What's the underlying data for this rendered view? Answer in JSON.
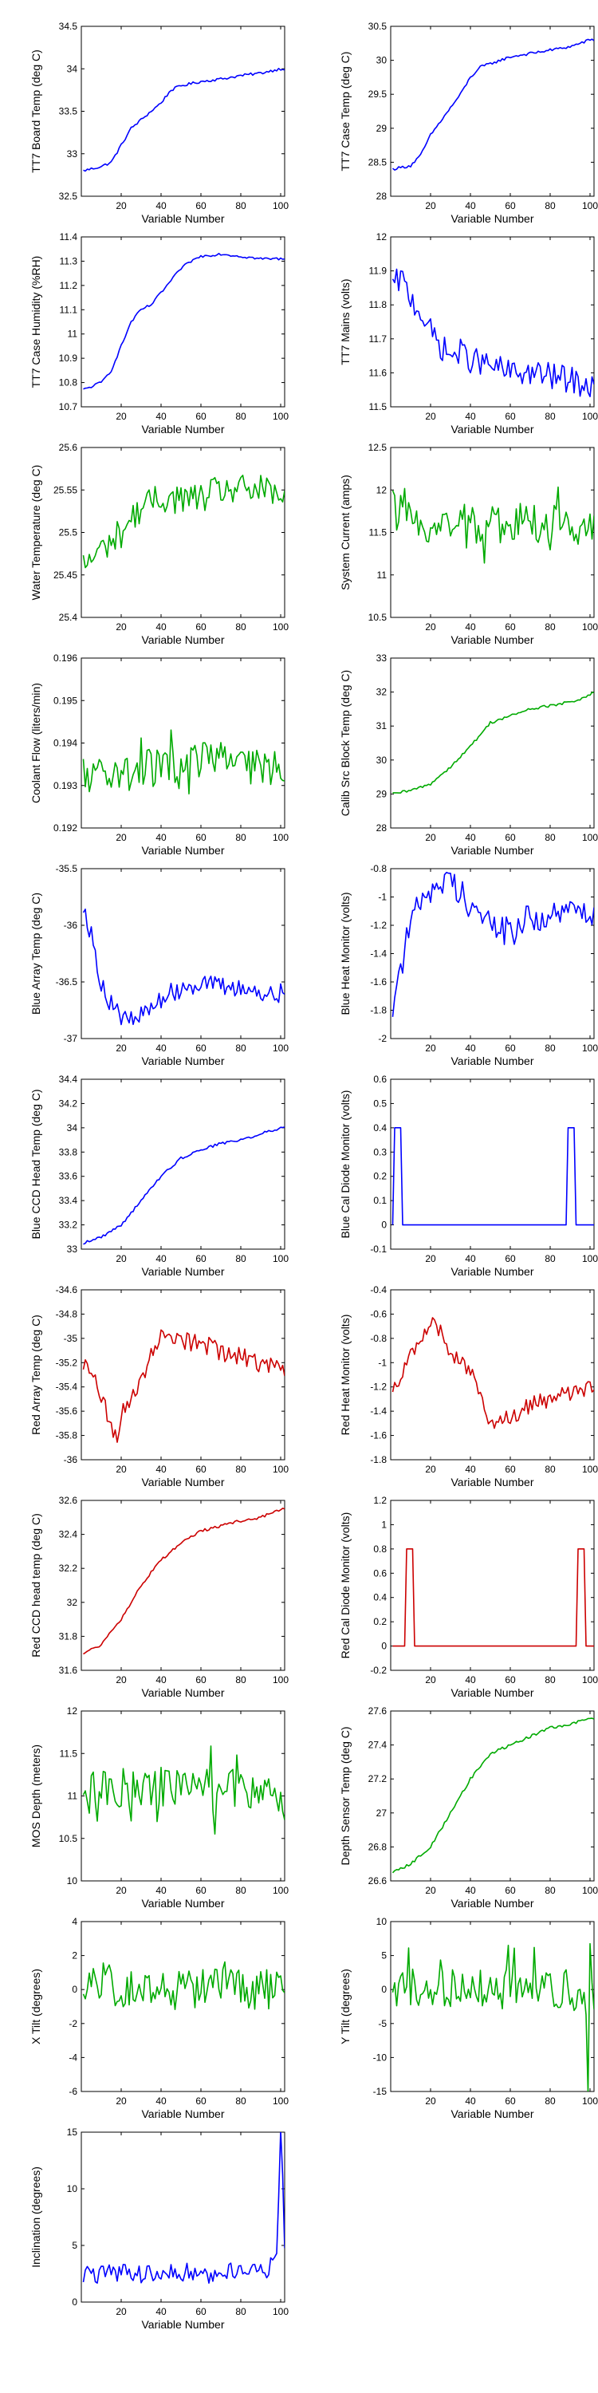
{
  "chart_data": [
    {
      "type": "line",
      "xlabel": "Variable Number",
      "ylabel": "TT7 Board Temp (deg C)",
      "xlim": [
        0,
        102
      ],
      "ylim": [
        32.5,
        34.5
      ],
      "xticks": [
        20,
        40,
        60,
        80,
        100
      ],
      "yticks": [
        32.5,
        33,
        33.5,
        34,
        34.5
      ],
      "color": "#0000ff",
      "shape": "rising_plateau",
      "x": [
        1,
        10,
        15,
        20,
        25,
        30,
        35,
        40,
        45,
        50,
        60,
        70,
        80,
        90,
        100,
        102
      ],
      "y": [
        32.8,
        32.85,
        32.9,
        33.1,
        33.3,
        33.4,
        33.5,
        33.6,
        33.75,
        33.8,
        33.85,
        33.88,
        33.92,
        33.95,
        34.0,
        34.0
      ]
    },
    {
      "type": "line",
      "xlabel": "Variable Number",
      "ylabel": "TT7 Case Temp (deg C)",
      "xlim": [
        0,
        102
      ],
      "ylim": [
        28,
        30.5
      ],
      "xticks": [
        20,
        40,
        60,
        80,
        100
      ],
      "yticks": [
        28,
        28.5,
        29,
        29.5,
        30,
        30.5
      ],
      "color": "#0000ff",
      "shape": "rising_plateau",
      "x": [
        1,
        10,
        15,
        20,
        25,
        30,
        35,
        40,
        45,
        50,
        60,
        70,
        80,
        90,
        100,
        102
      ],
      "y": [
        28.4,
        28.45,
        28.6,
        28.9,
        29.1,
        29.3,
        29.5,
        29.75,
        29.9,
        29.95,
        30.05,
        30.1,
        30.15,
        30.2,
        30.3,
        30.3
      ]
    },
    {
      "type": "line",
      "xlabel": "Variable Number",
      "ylabel": "TT7 Case Humidity (%RH)",
      "xlim": [
        0,
        102
      ],
      "ylim": [
        10.7,
        11.4
      ],
      "xticks": [
        20,
        40,
        60,
        80,
        100
      ],
      "yticks": [
        10.7,
        10.8,
        10.9,
        11,
        11.1,
        11.2,
        11.3,
        11.4
      ],
      "color": "#0000ff",
      "shape": "rising_plateau",
      "x": [
        1,
        10,
        15,
        20,
        25,
        30,
        35,
        40,
        45,
        50,
        55,
        60,
        70,
        80,
        90,
        100,
        102
      ],
      "y": [
        10.77,
        10.8,
        10.85,
        10.95,
        11.05,
        11.1,
        11.12,
        11.17,
        11.22,
        11.27,
        11.3,
        11.32,
        11.33,
        11.32,
        11.31,
        11.31,
        11.31
      ]
    },
    {
      "type": "line",
      "xlabel": "Variable Number",
      "ylabel": "TT7 Mains (volts)",
      "xlim": [
        0,
        102
      ],
      "ylim": [
        11.5,
        12
      ],
      "xticks": [
        20,
        40,
        60,
        80,
        100
      ],
      "yticks": [
        11.5,
        11.6,
        11.7,
        11.8,
        11.9,
        12
      ],
      "color": "#0000ff",
      "shape": "noisy_decay",
      "x": [
        1,
        5,
        10,
        15,
        20,
        25,
        30,
        35,
        40,
        50,
        60,
        70,
        80,
        90,
        100,
        102
      ],
      "y": [
        11.85,
        11.88,
        11.82,
        11.78,
        11.72,
        11.68,
        11.65,
        11.66,
        11.64,
        11.62,
        11.6,
        11.6,
        11.59,
        11.58,
        11.56,
        11.56
      ]
    },
    {
      "type": "line",
      "xlabel": "Variable Number",
      "ylabel": "Water Temperature (deg C)",
      "xlim": [
        0,
        102
      ],
      "ylim": [
        25.4,
        25.6
      ],
      "xticks": [
        20,
        40,
        60,
        80,
        100
      ],
      "yticks": [
        25.4,
        25.45,
        25.5,
        25.55,
        25.6
      ],
      "color": "#00aa00",
      "shape": "noisy_rise",
      "x": [
        1,
        10,
        20,
        30,
        40,
        50,
        60,
        70,
        80,
        90,
        100,
        102
      ],
      "y": [
        25.46,
        25.48,
        25.5,
        25.53,
        25.54,
        25.54,
        25.54,
        25.55,
        25.55,
        25.55,
        25.54,
        25.54
      ]
    },
    {
      "type": "line",
      "xlabel": "Variable Number",
      "ylabel": "System Current (amps)",
      "xlim": [
        0,
        102
      ],
      "ylim": [
        10.5,
        12.5
      ],
      "xticks": [
        20,
        40,
        60,
        80,
        100
      ],
      "yticks": [
        10.5,
        11,
        11.5,
        12,
        12.5
      ],
      "color": "#00aa00",
      "shape": "noisy_flat",
      "x": [
        1,
        5,
        10,
        20,
        30,
        40,
        50,
        60,
        70,
        80,
        90,
        100,
        102
      ],
      "y": [
        11.8,
        11.7,
        11.6,
        11.6,
        11.6,
        11.6,
        11.6,
        11.6,
        11.6,
        11.6,
        11.6,
        11.6,
        11.6
      ]
    },
    {
      "type": "line",
      "xlabel": "Variable Number",
      "ylabel": "Coolant Flow (liters/min)",
      "xlim": [
        0,
        102
      ],
      "ylim": [
        0.192,
        0.196
      ],
      "xticks": [
        20,
        40,
        60,
        80,
        100
      ],
      "yticks": [
        0.192,
        0.193,
        0.194,
        0.195,
        0.196
      ],
      "color": "#00aa00",
      "shape": "noisy_flat",
      "x": [
        1,
        10,
        20,
        30,
        40,
        50,
        60,
        65,
        70,
        80,
        90,
        100,
        102
      ],
      "y": [
        0.1932,
        0.1933,
        0.1933,
        0.1934,
        0.1934,
        0.1934,
        0.1935,
        0.1938,
        0.1936,
        0.1934,
        0.1934,
        0.1933,
        0.1933
      ]
    },
    {
      "type": "line",
      "xlabel": "Variable Number",
      "ylabel": "Calib Src Block Temp (deg C)",
      "xlim": [
        0,
        102
      ],
      "ylim": [
        28,
        33
      ],
      "xticks": [
        20,
        40,
        60,
        80,
        100
      ],
      "yticks": [
        28,
        29,
        30,
        31,
        32,
        33
      ],
      "color": "#00aa00",
      "shape": "rising_plateau",
      "x": [
        1,
        10,
        20,
        30,
        40,
        50,
        60,
        70,
        80,
        90,
        100,
        102
      ],
      "y": [
        29.0,
        29.1,
        29.3,
        29.8,
        30.4,
        31.1,
        31.3,
        31.5,
        31.6,
        31.7,
        31.9,
        32.0
      ]
    },
    {
      "type": "line",
      "xlabel": "Variable Number",
      "ylabel": "Blue Array Temp (deg C)",
      "xlim": [
        0,
        102
      ],
      "ylim": [
        -37,
        -35.5
      ],
      "xticks": [
        20,
        40,
        60,
        80,
        100
      ],
      "yticks": [
        -37,
        -36.5,
        -36,
        -35.5
      ],
      "color": "#0000ff",
      "shape": "noisy_dip",
      "x": [
        1,
        5,
        10,
        15,
        20,
        25,
        30,
        40,
        50,
        60,
        70,
        80,
        90,
        100,
        102
      ],
      "y": [
        -35.8,
        -36.1,
        -36.5,
        -36.7,
        -36.8,
        -36.85,
        -36.8,
        -36.65,
        -36.55,
        -36.5,
        -36.55,
        -36.55,
        -36.6,
        -36.6,
        -36.6
      ]
    },
    {
      "type": "line",
      "xlabel": "Variable Number",
      "ylabel": "Blue Heat Monitor (volts)",
      "xlim": [
        0,
        102
      ],
      "ylim": [
        -2,
        -0.8
      ],
      "xticks": [
        20,
        40,
        60,
        80,
        100
      ],
      "yticks": [
        -2,
        -1.8,
        -1.6,
        -1.4,
        -1.2,
        -1,
        -0.8
      ],
      "color": "#0000ff",
      "shape": "noisy_rise",
      "x": [
        1,
        5,
        10,
        15,
        20,
        25,
        30,
        35,
        40,
        50,
        60,
        70,
        80,
        90,
        100,
        102
      ],
      "y": [
        -1.75,
        -1.5,
        -1.2,
        -1.0,
        -0.95,
        -0.9,
        -0.9,
        -0.95,
        -1.05,
        -1.2,
        -1.25,
        -1.15,
        -1.15,
        -1.1,
        -1.1,
        -1.1
      ]
    },
    {
      "type": "line",
      "xlabel": "Variable Number",
      "ylabel": "Blue CCD Head Temp (deg C)",
      "xlim": [
        0,
        102
      ],
      "ylim": [
        33,
        34.4
      ],
      "xticks": [
        20,
        40,
        60,
        80,
        100
      ],
      "yticks": [
        33,
        33.2,
        33.4,
        33.6,
        33.8,
        34,
        34.2,
        34.4
      ],
      "color": "#0000ff",
      "shape": "rising_plateau",
      "x": [
        1,
        10,
        20,
        30,
        40,
        50,
        60,
        70,
        80,
        90,
        100,
        102
      ],
      "y": [
        33.05,
        33.1,
        33.2,
        33.4,
        33.6,
        33.75,
        33.82,
        33.87,
        33.9,
        33.95,
        34.0,
        34.0
      ]
    },
    {
      "type": "line",
      "xlabel": "Variable Number",
      "ylabel": "Blue Cal Diode Monitor (volts)",
      "xlim": [
        0,
        102
      ],
      "ylim": [
        -0.1,
        0.6
      ],
      "xticks": [
        20,
        40,
        60,
        80,
        100
      ],
      "yticks": [
        -0.1,
        0,
        0.1,
        0.2,
        0.3,
        0.4,
        0.5,
        0.6
      ],
      "color": "#0000ff",
      "shape": "step",
      "x": [
        1,
        2,
        5,
        6,
        88,
        89,
        92,
        93,
        102
      ],
      "y": [
        0,
        0.4,
        0.4,
        0,
        0,
        0.4,
        0.4,
        0,
        0
      ]
    },
    {
      "type": "line",
      "xlabel": "Variable Number",
      "ylabel": "Red Array Temp (deg C)",
      "xlim": [
        0,
        102
      ],
      "ylim": [
        -36,
        -34.6
      ],
      "xticks": [
        20,
        40,
        60,
        80,
        100
      ],
      "yticks": [
        -36,
        -35.8,
        -35.6,
        -35.4,
        -35.2,
        -35,
        -34.8,
        -34.6
      ],
      "color": "#cc0000",
      "shape": "noisy_dip",
      "x": [
        1,
        5,
        10,
        15,
        18,
        20,
        25,
        30,
        35,
        40,
        45,
        50,
        60,
        70,
        80,
        90,
        100,
        102
      ],
      "y": [
        -35.2,
        -35.3,
        -35.5,
        -35.7,
        -35.9,
        -35.6,
        -35.5,
        -35.3,
        -35.15,
        -35.0,
        -34.95,
        -35.0,
        -35.05,
        -35.1,
        -35.15,
        -35.2,
        -35.25,
        -35.25
      ]
    },
    {
      "type": "line",
      "xlabel": "Variable Number",
      "ylabel": "Red Heat Monitor (volts)",
      "xlim": [
        0,
        102
      ],
      "ylim": [
        -1.8,
        -0.4
      ],
      "xticks": [
        20,
        40,
        60,
        80,
        100
      ],
      "yticks": [
        -1.8,
        -1.6,
        -1.4,
        -1.2,
        -1,
        -0.8,
        -0.6,
        -0.4
      ],
      "color": "#cc0000",
      "shape": "noisy_wave",
      "x": [
        1,
        5,
        10,
        15,
        20,
        25,
        30,
        35,
        40,
        45,
        50,
        55,
        60,
        70,
        80,
        90,
        100,
        102
      ],
      "y": [
        -1.2,
        -1.1,
        -0.95,
        -0.85,
        -0.65,
        -0.75,
        -0.9,
        -1.0,
        -1.05,
        -1.3,
        -1.55,
        -1.5,
        -1.45,
        -1.35,
        -1.3,
        -1.25,
        -1.2,
        -1.2
      ]
    },
    {
      "type": "line",
      "xlabel": "Variable Number",
      "ylabel": "Red CCD head temp (deg C)",
      "xlim": [
        0,
        102
      ],
      "ylim": [
        31.6,
        32.6
      ],
      "xticks": [
        20,
        40,
        60,
        80,
        100
      ],
      "yticks": [
        31.6,
        31.8,
        32,
        32.2,
        32.4,
        32.6
      ],
      "color": "#cc0000",
      "shape": "rising_plateau",
      "x": [
        1,
        10,
        20,
        30,
        40,
        50,
        60,
        70,
        80,
        90,
        100,
        102
      ],
      "y": [
        31.7,
        31.75,
        31.9,
        32.1,
        32.25,
        32.35,
        32.42,
        32.45,
        32.48,
        32.5,
        32.55,
        32.55
      ]
    },
    {
      "type": "line",
      "xlabel": "Variable Number",
      "ylabel": "Red Cal Diode Monitor (volts)",
      "xlim": [
        0,
        102
      ],
      "ylim": [
        -0.2,
        1.2
      ],
      "xticks": [
        20,
        40,
        60,
        80,
        100
      ],
      "yticks": [
        -0.2,
        0,
        0.2,
        0.4,
        0.6,
        0.8,
        1,
        1.2
      ],
      "color": "#cc0000",
      "shape": "step",
      "x": [
        1,
        7,
        8,
        11,
        12,
        93,
        94,
        97,
        98,
        102
      ],
      "y": [
        0,
        0,
        0.8,
        0.8,
        0,
        0,
        0.8,
        0.8,
        0,
        0
      ]
    },
    {
      "type": "line",
      "xlabel": "Variable Number",
      "ylabel": "MOS Depth (meters)",
      "xlim": [
        0,
        102
      ],
      "ylim": [
        10,
        12
      ],
      "xticks": [
        20,
        40,
        60,
        80,
        100
      ],
      "yticks": [
        10,
        10.5,
        11,
        11.5,
        12
      ],
      "color": "#00aa00",
      "shape": "noisy_flat",
      "x": [
        1,
        10,
        20,
        30,
        40,
        50,
        60,
        70,
        80,
        90,
        100,
        102
      ],
      "y": [
        11.1,
        11.1,
        11.1,
        11.05,
        11.1,
        11.1,
        11.1,
        11.05,
        11.1,
        11.1,
        11.0,
        11.0
      ]
    },
    {
      "type": "line",
      "xlabel": "Variable Number",
      "ylabel": "Depth Sensor Temp (deg C)",
      "xlim": [
        0,
        102
      ],
      "ylim": [
        26.6,
        27.6
      ],
      "xticks": [
        20,
        40,
        60,
        80,
        100
      ],
      "yticks": [
        26.6,
        26.8,
        27,
        27.2,
        27.4,
        27.6
      ],
      "color": "#00aa00",
      "shape": "rising_plateau",
      "x": [
        1,
        10,
        20,
        30,
        40,
        50,
        60,
        70,
        80,
        90,
        100,
        102
      ],
      "y": [
        26.65,
        26.7,
        26.8,
        27.0,
        27.2,
        27.35,
        27.4,
        27.45,
        27.5,
        27.52,
        27.56,
        27.56
      ]
    },
    {
      "type": "line",
      "xlabel": "Variable Number",
      "ylabel": "X Tilt (degrees)",
      "xlim": [
        0,
        102
      ],
      "ylim": [
        -6,
        4
      ],
      "xticks": [
        20,
        40,
        60,
        80,
        100
      ],
      "yticks": [
        -6,
        -4,
        -2,
        0,
        2,
        4
      ],
      "color": "#00aa00",
      "shape": "noisy_flat",
      "x": [
        1,
        10,
        20,
        30,
        40,
        50,
        60,
        70,
        80,
        90,
        100,
        102
      ],
      "y": [
        0,
        0.5,
        0,
        0,
        0,
        0,
        0,
        0,
        0,
        0,
        0,
        0
      ]
    },
    {
      "type": "line",
      "xlabel": "Variable Number",
      "ylabel": "Y Tilt (degrees)",
      "xlim": [
        0,
        102
      ],
      "ylim": [
        -15,
        10
      ],
      "xticks": [
        20,
        40,
        60,
        80,
        100
      ],
      "yticks": [
        -15,
        -10,
        -5,
        0,
        5,
        10
      ],
      "color": "#00aa00",
      "shape": "noisy_flat",
      "x": [
        1,
        10,
        20,
        30,
        40,
        50,
        60,
        70,
        80,
        90,
        98,
        99,
        100,
        101,
        102
      ],
      "y": [
        0,
        0,
        0,
        0,
        0,
        0,
        0,
        0,
        0,
        0,
        -2,
        -13,
        7,
        0,
        0
      ]
    },
    {
      "type": "line",
      "xlabel": "Variable Number",
      "ylabel": "Inclination (degrees)",
      "xlim": [
        0,
        102
      ],
      "ylim": [
        0,
        15
      ],
      "xticks": [
        20,
        40,
        60,
        80,
        100
      ],
      "yticks": [
        0,
        5,
        10,
        15
      ],
      "color": "#0000ff",
      "shape": "noisy_spikes",
      "x": [
        1,
        10,
        20,
        30,
        40,
        50,
        60,
        70,
        80,
        90,
        98,
        99,
        100,
        101,
        102
      ],
      "y": [
        2,
        2,
        2,
        2,
        2,
        2,
        2,
        2,
        2,
        2,
        3,
        8,
        15,
        10,
        5
      ]
    }
  ]
}
